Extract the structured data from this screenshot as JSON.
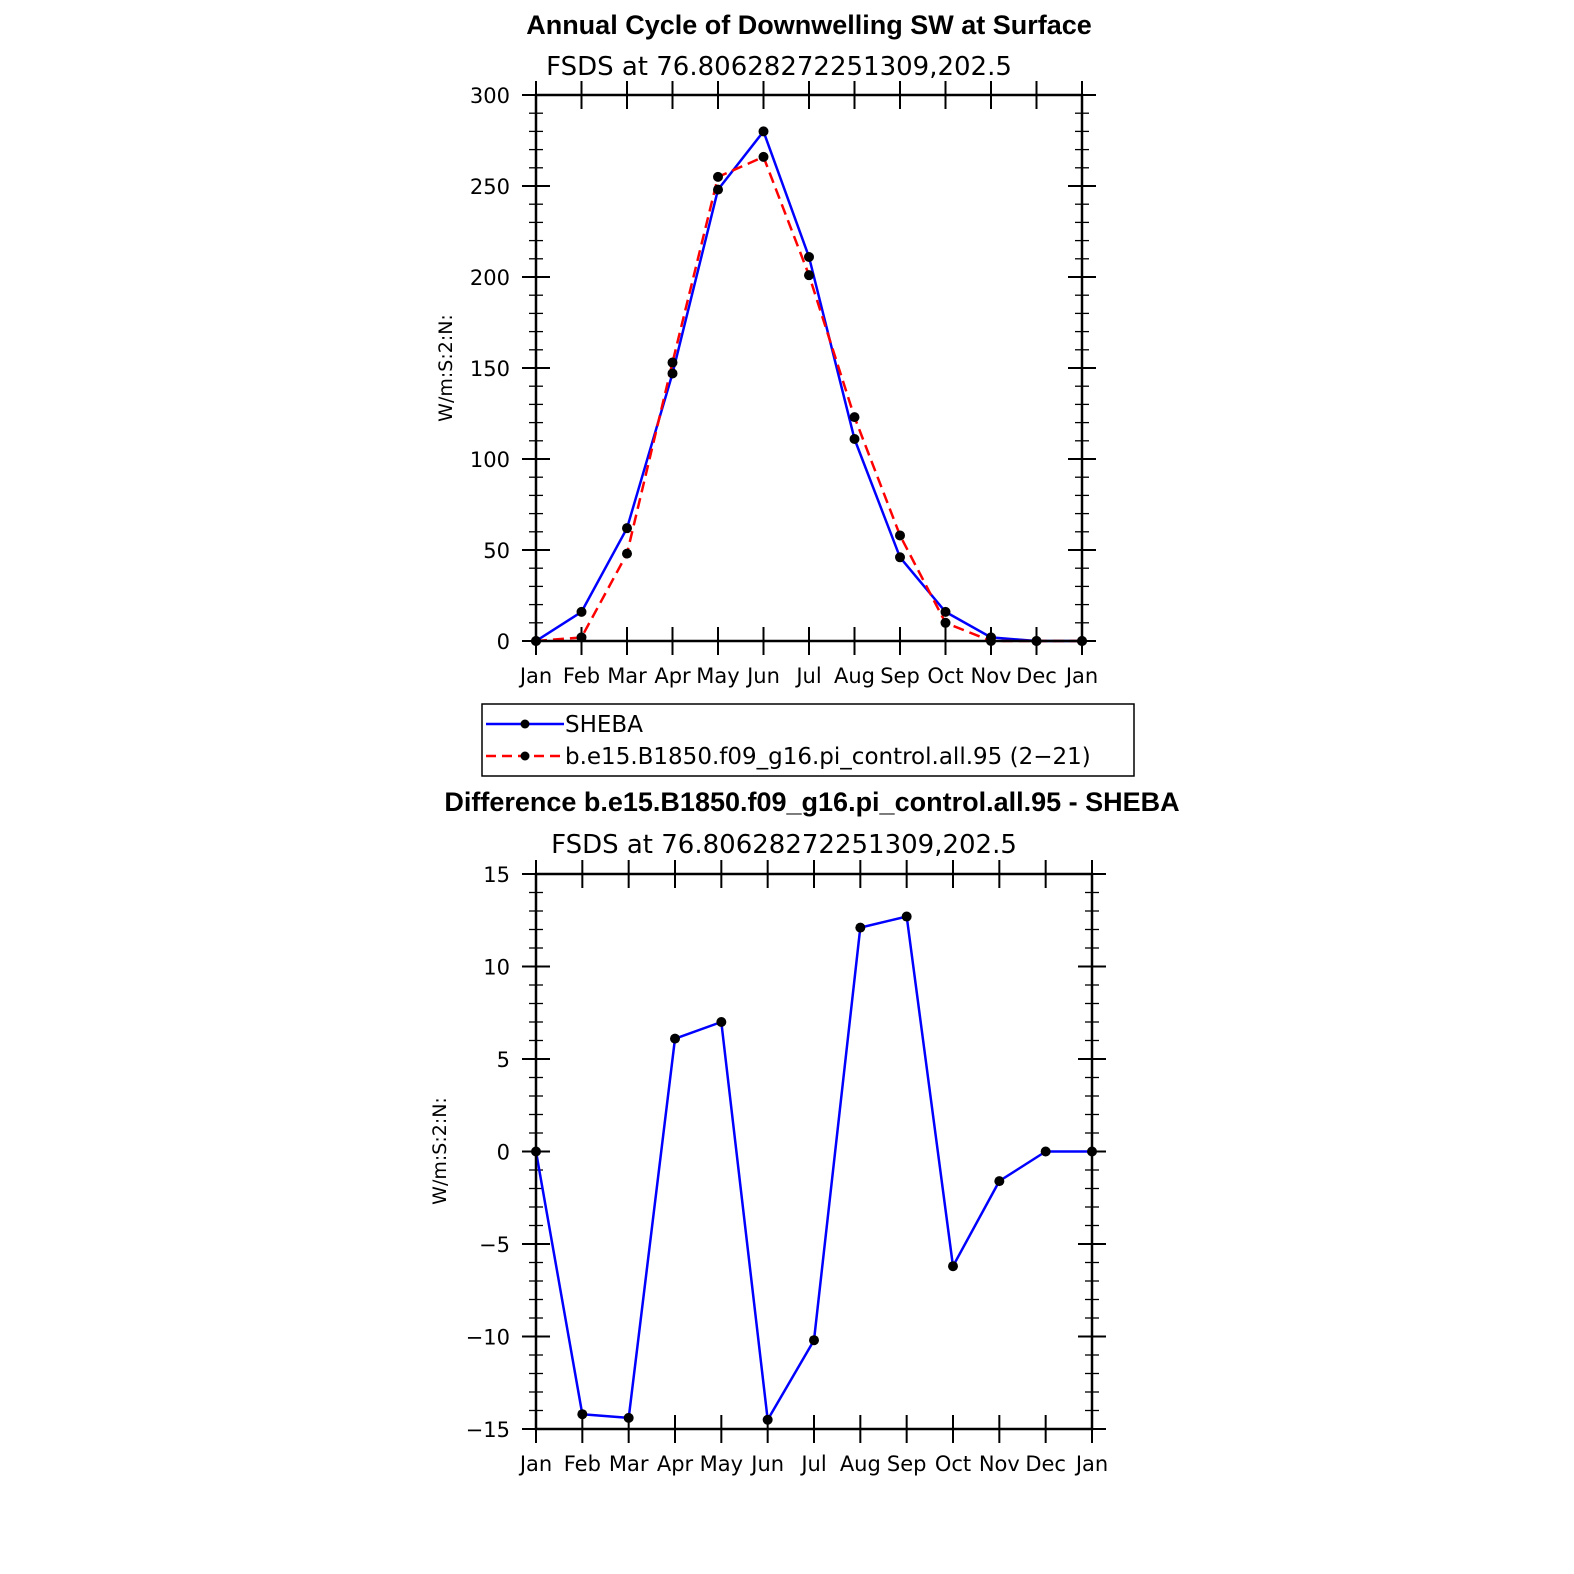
{
  "chart_data": [
    {
      "type": "line",
      "title": "Annual Cycle of Downwelling SW at Surface",
      "subtitle": "FSDS at 76.80628272251309,202.5",
      "ylabel": "W/m:S:2:N:",
      "categories": [
        "Jan",
        "Feb",
        "Mar",
        "Apr",
        "May",
        "Jun",
        "Jul",
        "Aug",
        "Sep",
        "Oct",
        "Nov",
        "Dec",
        "Jan"
      ],
      "ylim": [
        0,
        300
      ],
      "yticks": [
        0,
        50,
        100,
        150,
        200,
        250,
        300
      ],
      "series": [
        {
          "name": "SHEBA",
          "color": "#0000ff",
          "dash": "solid",
          "values": [
            0,
            16,
            62,
            147,
            248,
            280,
            211,
            111,
            46,
            16,
            2,
            0,
            0
          ]
        },
        {
          "name": "b.e15.B1850.f09_g16.pi_control.all.95 (2−21)",
          "color": "#ff0000",
          "dash": "dashed",
          "values": [
            0,
            2,
            48,
            153,
            255,
            266,
            201,
            123,
            58,
            10,
            0,
            0,
            0
          ]
        }
      ],
      "legend_position": "below"
    },
    {
      "type": "line",
      "title": "Difference b.e15.B1850.f09_g16.pi_control.all.95 - SHEBA",
      "subtitle": "FSDS at 76.80628272251309,202.5",
      "ylabel": "W/m:S:2:N:",
      "categories": [
        "Jan",
        "Feb",
        "Mar",
        "Apr",
        "May",
        "Jun",
        "Jul",
        "Aug",
        "Sep",
        "Oct",
        "Nov",
        "Dec",
        "Jan"
      ],
      "ylim": [
        -15,
        15
      ],
      "yticks": [
        -15,
        -10,
        -5,
        0,
        5,
        10,
        15
      ],
      "ytick_labels": [
        "−15",
        "−10",
        "−5",
        "0",
        "5",
        "10",
        "15"
      ],
      "series": [
        {
          "color": "#0000ff",
          "dash": "solid",
          "values": [
            0,
            -14.2,
            -14.4,
            6.1,
            7.0,
            -14.5,
            -10.2,
            12.1,
            12.7,
            -6.2,
            -1.6,
            0,
            0
          ]
        }
      ]
    }
  ]
}
